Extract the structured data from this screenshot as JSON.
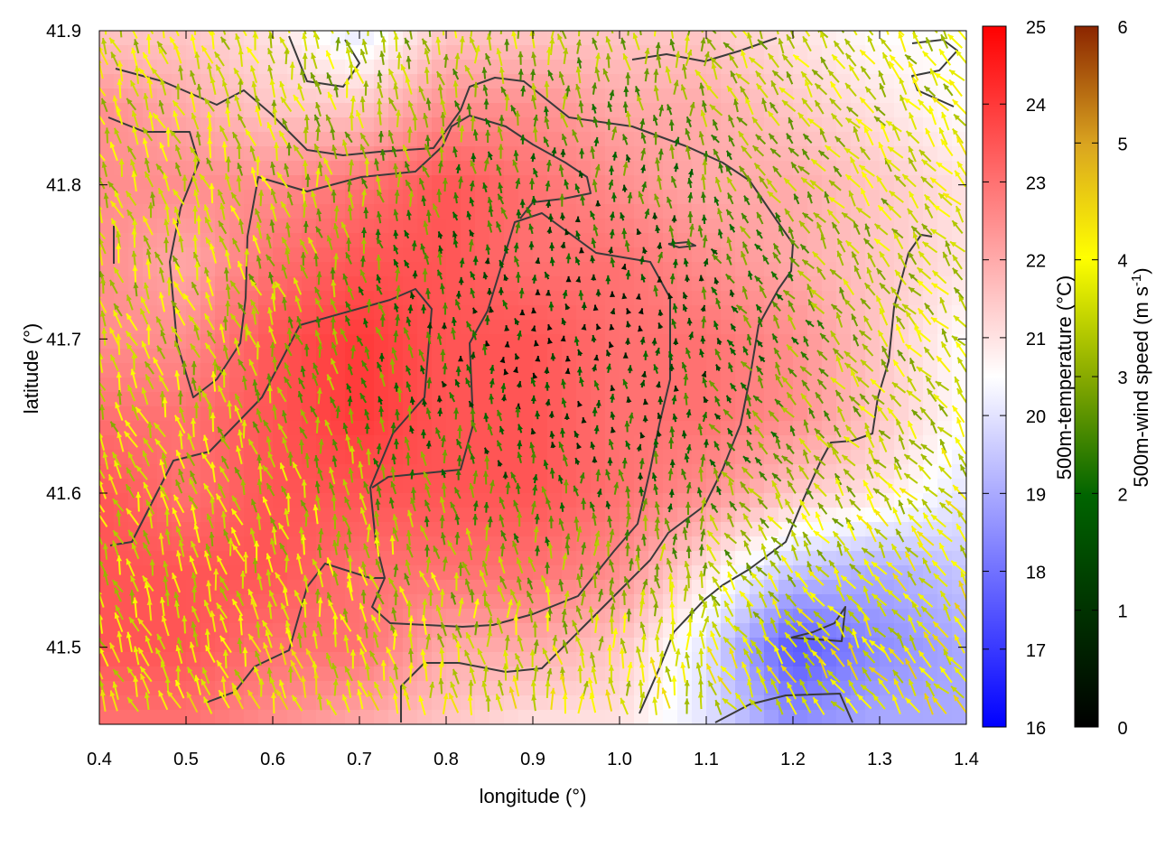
{
  "chart_data": {
    "type": "heatmap",
    "title": "",
    "xlabel": "longitude (°)",
    "ylabel": "latitude (°)",
    "xlim": [
      0.4,
      1.4
    ],
    "ylim": [
      41.45,
      41.9
    ],
    "x_ticks": [
      "0.4",
      "0.5",
      "0.6",
      "0.7",
      "0.8",
      "0.9",
      "1.0",
      "1.1",
      "1.2",
      "1.3",
      "1.4"
    ],
    "y_ticks": [
      "41.5",
      "41.6",
      "41.7",
      "41.8",
      "41.9"
    ],
    "overlays": [
      "wind-vectors",
      "contour-lines"
    ],
    "temperature_colorbar": {
      "label": "500m-temperature (°C)",
      "range": [
        16,
        25
      ],
      "ticks": [
        "16",
        "17",
        "18",
        "19",
        "20",
        "21",
        "22",
        "23",
        "24",
        "25"
      ],
      "palette": [
        "#0000ff",
        "#ffffff",
        "#ff0000"
      ]
    },
    "wind_colorbar": {
      "label_main": "500m-wind speed (m s",
      "label_sup": "-1",
      "label_end": ")",
      "range": [
        0,
        6
      ],
      "ticks": [
        "0",
        "1",
        "2",
        "3",
        "4",
        "5",
        "6"
      ],
      "palette": [
        "#000000",
        "#006400",
        "#88aa00",
        "#ffff00",
        "#daa520",
        "#8b2500"
      ]
    },
    "temperature_field": {
      "lon": [
        0.4,
        0.5,
        0.6,
        0.7,
        0.8,
        0.9,
        1.0,
        1.1,
        1.2,
        1.3,
        1.4
      ],
      "lat": [
        41.9,
        41.85,
        41.8,
        41.75,
        41.7,
        41.65,
        41.6,
        41.55,
        41.5,
        41.45
      ],
      "values": [
        [
          21.5,
          21.5,
          21.0,
          20.0,
          21.5,
          21.5,
          21.5,
          21.5,
          21.0,
          20.5,
          20.5
        ],
        [
          22.5,
          22.0,
          21.5,
          21.5,
          22.5,
          22.5,
          22.0,
          22.0,
          21.5,
          21.0,
          20.5
        ],
        [
          22.5,
          22.5,
          22.5,
          23.0,
          23.5,
          23.0,
          22.5,
          22.0,
          22.0,
          21.5,
          21.0
        ],
        [
          22.5,
          22.0,
          23.0,
          23.5,
          23.5,
          23.0,
          23.0,
          22.5,
          22.0,
          21.5,
          21.0
        ],
        [
          22.5,
          22.5,
          23.5,
          24.0,
          23.5,
          23.5,
          23.0,
          23.0,
          22.5,
          21.5,
          20.5
        ],
        [
          23.0,
          23.0,
          23.5,
          24.0,
          23.5,
          23.5,
          23.0,
          23.0,
          22.5,
          21.5,
          20.5
        ],
        [
          23.5,
          23.0,
          23.5,
          23.5,
          23.5,
          23.5,
          23.0,
          22.5,
          21.5,
          21.0,
          20.0
        ],
        [
          23.5,
          23.5,
          23.5,
          23.0,
          23.0,
          23.0,
          22.5,
          21.0,
          19.5,
          19.0,
          19.5
        ],
        [
          23.5,
          23.5,
          23.0,
          23.0,
          22.0,
          22.0,
          21.5,
          20.0,
          17.5,
          18.5,
          19.0
        ],
        [
          23.0,
          23.0,
          22.5,
          22.0,
          21.5,
          21.0,
          21.0,
          20.0,
          18.5,
          19.0,
          19.0
        ]
      ]
    }
  }
}
